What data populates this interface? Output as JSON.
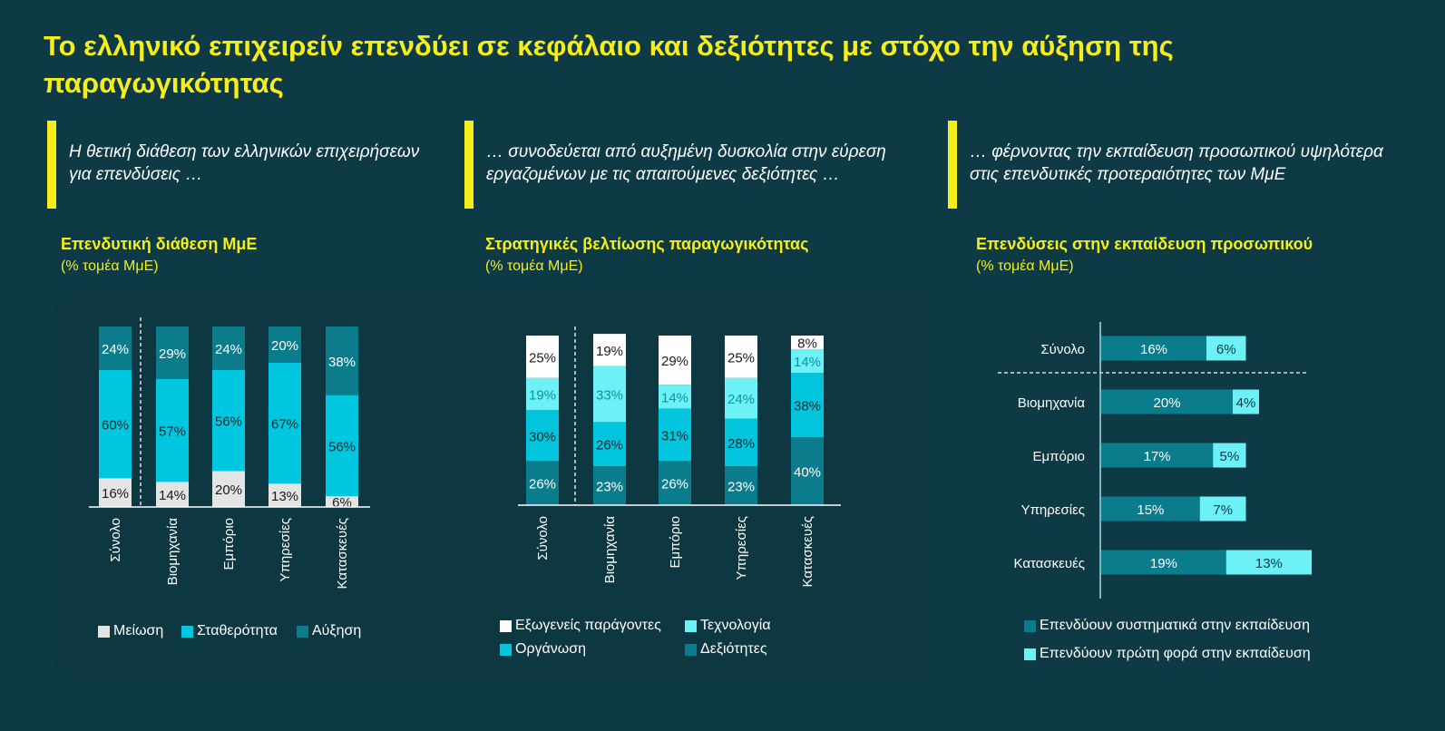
{
  "title": "Το ελληνικό επιχειρείν επενδύει σε κεφάλαιο και δεξιότητες με στόχο την αύξηση της παραγωγικότητας",
  "quotes": [
    "Η θετική διάθεση των ελληνικών επιχειρήσεων για επενδύσεις …",
    "… συνοδεύεται από αυξημένη δυσκολία στην εύρεση εργαζομένων με τις απαιτούμενες δεξιότητες …",
    "… φέρνοντας την εκπαίδευση προσωπικού υψηλότερα στις επενδυτικές προτεραιότητες των ΜμΕ"
  ],
  "chart_data": [
    {
      "type": "bar",
      "stacked": true,
      "title": "Επενδυτική διάθεση ΜμΕ",
      "subtitle": "(% τομέα ΜμΕ)",
      "categories": [
        "Σύνολο",
        "Βιομηχανία",
        "Εμπόριο",
        "Υπηρεσίες",
        "Κατασκευές"
      ],
      "series": [
        {
          "name": "Μείωση",
          "color": "#e4e4e4",
          "label_color": "#1a1a1a",
          "values": [
            16,
            14,
            20,
            13,
            6
          ]
        },
        {
          "name": "Σταθερότητα",
          "color": "#00c7df",
          "label_color": "#0e2a30",
          "values": [
            60,
            57,
            56,
            67,
            56
          ]
        },
        {
          "name": "Αύξηση",
          "color": "#0a7c8b",
          "label_color": "#ffffff",
          "values": [
            24,
            29,
            24,
            20,
            38
          ]
        }
      ],
      "ylim": [
        0,
        100
      ]
    },
    {
      "type": "bar",
      "stacked": true,
      "title": "Στρατηγικές βελτίωσης παραγωγικότητας",
      "subtitle": "(%  τομέα ΜμΕ)",
      "categories": [
        "Σύνολο",
        "Βιομηχανία",
        "Εμπόριο",
        "Υπηρεσίες",
        "Κατασκευές"
      ],
      "series": [
        {
          "name": "Δεξιότητες",
          "color": "#0a7c8b",
          "label_color": "#ffffff",
          "values": [
            26,
            23,
            26,
            23,
            40
          ]
        },
        {
          "name": "Οργάνωση",
          "color": "#00c5dc",
          "label_color": "#0e2a30",
          "values": [
            30,
            26,
            31,
            28,
            38
          ]
        },
        {
          "name": "Τεχνολογία",
          "color": "#6cf1f6",
          "label_color": "#0a93a3",
          "values": [
            19,
            33,
            14,
            24,
            14
          ]
        },
        {
          "name": "Εξωγενείς παράγοντες",
          "color": "#ffffff",
          "label_color": "#1a1a1a",
          "values": [
            25,
            19,
            29,
            25,
            8
          ]
        }
      ],
      "legend_order": [
        "Εξωγενείς παράγοντες",
        "Τεχνολογία",
        "Οργάνωση",
        "Δεξιότητες"
      ],
      "ylim": [
        0,
        100
      ]
    },
    {
      "type": "bar",
      "orientation": "horizontal",
      "stacked": true,
      "title": "Επενδύσεις στην εκπαίδευση προσωπικού",
      "subtitle": "(% τομέα ΜμΕ)",
      "categories": [
        "Σύνολο",
        "Βιομηχανία",
        "Εμπόριο",
        "Υπηρεσίες",
        "Κατασκευές"
      ],
      "series": [
        {
          "name": "Επενδύουν συστηματικά στην εκπαίδευση",
          "color": "#0a7c8b",
          "label_color": "#ffffff",
          "values": [
            16,
            20,
            17,
            15,
            19
          ]
        },
        {
          "name": "Επενδύουν πρώτη φορά στην εκπαίδευση",
          "color": "#6cf1f6",
          "label_color": "#0e3a45",
          "values": [
            6,
            4,
            5,
            7,
            13
          ]
        }
      ]
    }
  ]
}
